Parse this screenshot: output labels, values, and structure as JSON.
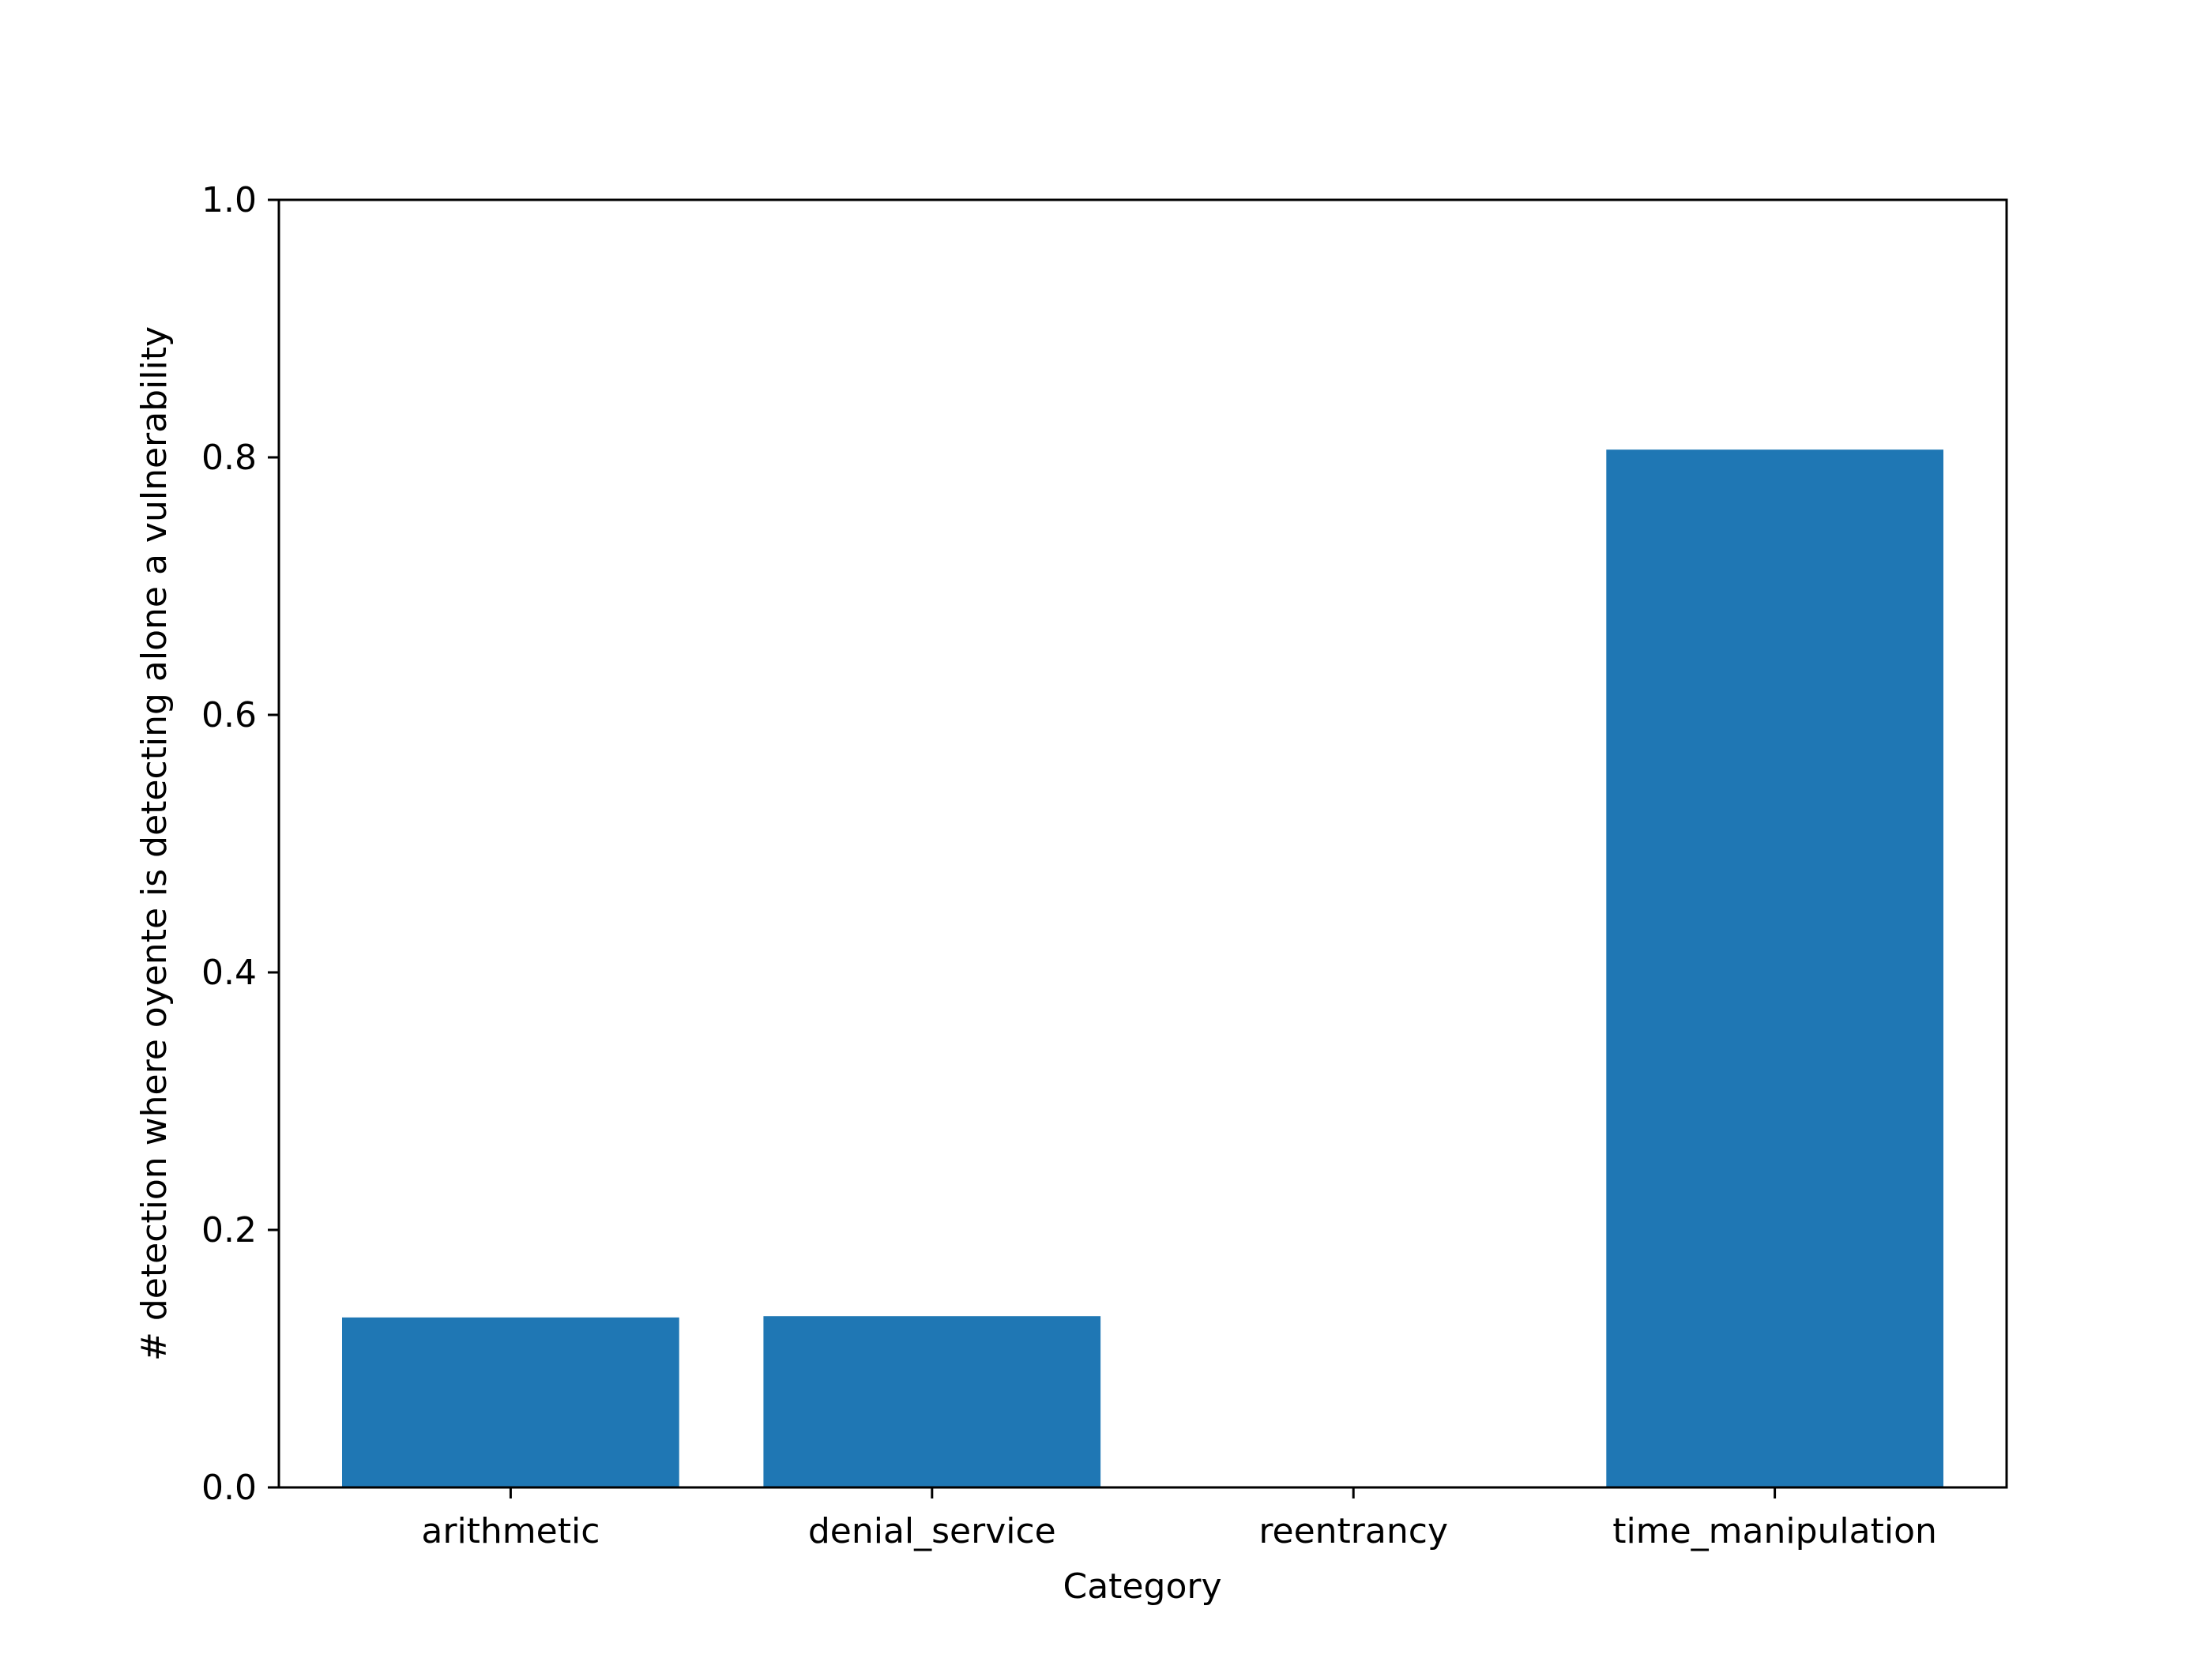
{
  "chart_data": {
    "type": "bar",
    "title": "",
    "xlabel": "Category",
    "ylabel": "# detection where oyente is detecting alone a vulnerability",
    "categories": [
      "arithmetic",
      "denial_service",
      "reentrancy",
      "time_manipulation"
    ],
    "values": [
      0.132,
      0.133,
      0.0,
      0.806
    ],
    "ylim": [
      0.0,
      1.0
    ],
    "yticks": [
      "0.0",
      "0.2",
      "0.4",
      "0.6",
      "0.8",
      "1.0"
    ],
    "grid": false,
    "legend": "none",
    "colors": {
      "bar": "#1f77b4",
      "axis": "#000000",
      "background": "#ffffff"
    }
  }
}
